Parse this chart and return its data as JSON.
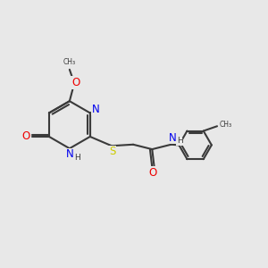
{
  "bg_color": "#e8e8e8",
  "bond_color": "#3a3a3a",
  "bond_width": 1.5,
  "atom_colors": {
    "N": "#0000ee",
    "O": "#ee0000",
    "S": "#cccc00",
    "C": "#3a3a3a",
    "H": "#3a3a3a"
  },
  "font_size": 7.5
}
